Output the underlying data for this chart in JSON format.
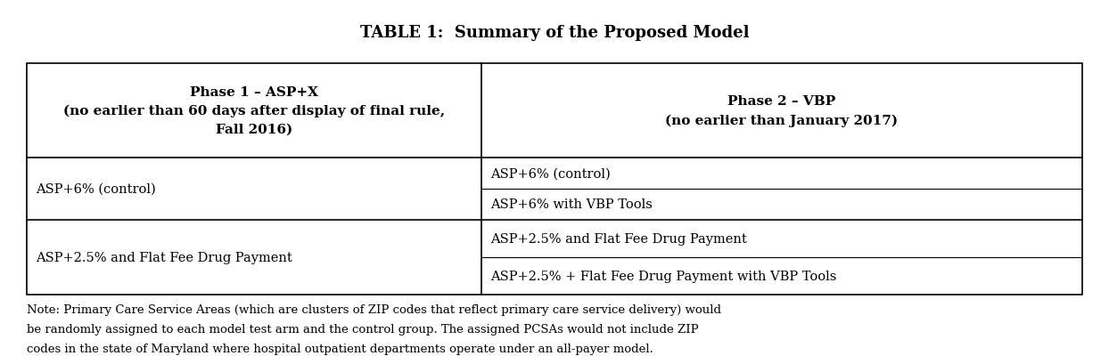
{
  "title": "TABLE 1:  Summary of the Proposed Model",
  "title_fontsize": 13,
  "col1_header_line1": "Phase 1 – ASP+X",
  "col1_header_line2": "(no earlier than 60 days after display of final rule,",
  "col1_header_line3": "Fall 2016)",
  "col2_header_line1": "Phase 2 – VBP",
  "col2_header_line2": "(no earlier than January 2017)",
  "row1_col1": "ASP+6% (control)",
  "row1_col2_line1": "ASP+6% (control)",
  "row1_col2_line2": "ASP+6% with VBP Tools",
  "row2_col1": "ASP+2.5% and Flat Fee Drug Payment",
  "row2_col2_line1": "ASP+2.5% and Flat Fee Drug Payment",
  "row2_col2_line2": "ASP+2.5% + Flat Fee Drug Payment with VBP Tools",
  "note_line1": "Note: Primary Care Service Areas (which are clusters of ZIP codes that reflect primary care service delivery) would",
  "note_line2": "be randomly assigned to each model test arm and the control group. The assigned PCSAs would not include ZIP",
  "note_line3": "codes in the state of Maryland where hospital outpatient departments operate under an all-payer model.",
  "header_fontsize": 11,
  "body_fontsize": 10.5,
  "note_fontsize": 9.5,
  "bg_color": "#ffffff",
  "text_color": "#000000",
  "border_color": "#000000",
  "fig_width": 12.44,
  "fig_height": 4.1,
  "dpi": 100
}
